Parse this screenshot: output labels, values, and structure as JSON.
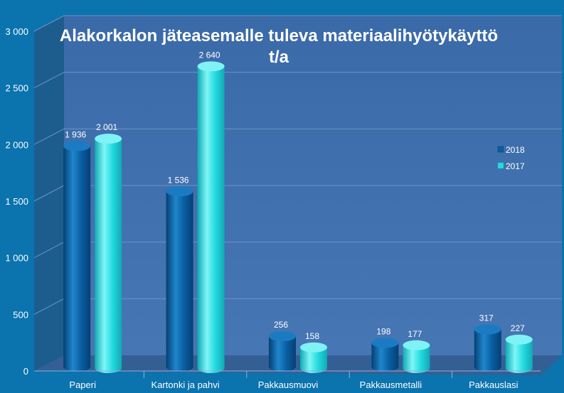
{
  "chart_data": {
    "type": "bar",
    "title": "Alakorkalon jäteasemalle tuleva materiaalihyötykäyttö",
    "subtitle": "t/a",
    "categories": [
      "Paperi",
      "Kartonki ja pahvi",
      "Pakkausmuovi",
      "Pakkausmetalli",
      "Pakkauslasi"
    ],
    "series": [
      {
        "name": "2018",
        "values": [
          1936,
          1536,
          256,
          198,
          317
        ],
        "labels": [
          "1 936",
          "1 536",
          "256",
          "198",
          "317"
        ],
        "color": "#0a5fa2"
      },
      {
        "name": "2017",
        "values": [
          2001,
          2640,
          158,
          177,
          227
        ],
        "labels": [
          "2 001",
          "2 640",
          "158",
          "177",
          "227"
        ],
        "color": "#25dbe0"
      }
    ],
    "ylim": [
      0,
      3000
    ],
    "yticks": [
      0,
      500,
      1000,
      1500,
      2000,
      2500,
      3000
    ],
    "ytick_labels": [
      "0",
      "500",
      "1 000",
      "1 500",
      "2 000",
      "2 500",
      "3 000"
    ],
    "grid": true,
    "legend_position": "right"
  },
  "colors": {
    "background": "#0b73ad",
    "plot_wall": "#3f6fae",
    "side_wall": "#1c5d8e",
    "floor": "#345f95",
    "gridline": "#6f93c8",
    "text": "#ffffff",
    "axis_text": "#ffffff"
  }
}
